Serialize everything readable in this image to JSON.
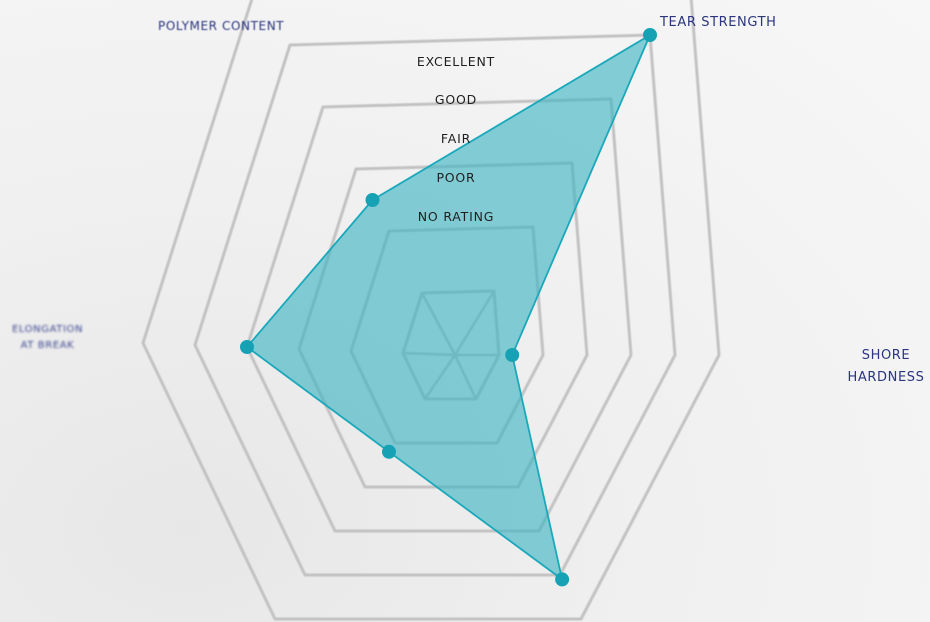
{
  "chart_data": {
    "type": "radar",
    "levels": [
      "NO RATING",
      "POOR",
      "FAIR",
      "GOOD",
      "EXCELLENT"
    ],
    "axes": [
      "TEAR STRENGTH",
      "SHORE HARDNESS",
      "",
      "",
      "ELONGATION AT BREAK",
      "POLYMER CONTENT"
    ],
    "axis_labels": {
      "tear": "TEAR STRENGTH",
      "shore": "SHORE\nHARDNESS",
      "elongation": "ELONGATION\nAT BREAK",
      "polymer": "POLYMER CONTENT"
    },
    "values": [
      5,
      1.3,
      5.1,
      2.2,
      4,
      2.5
    ],
    "rmax": 6,
    "colors": {
      "grid": "#c2c2c2",
      "fill": "#3bb3c4",
      "stroke": "#1aa8bb",
      "point": "#16a2b4",
      "level_text": "#1f1f1f",
      "axis_text": "#2b3580"
    }
  }
}
